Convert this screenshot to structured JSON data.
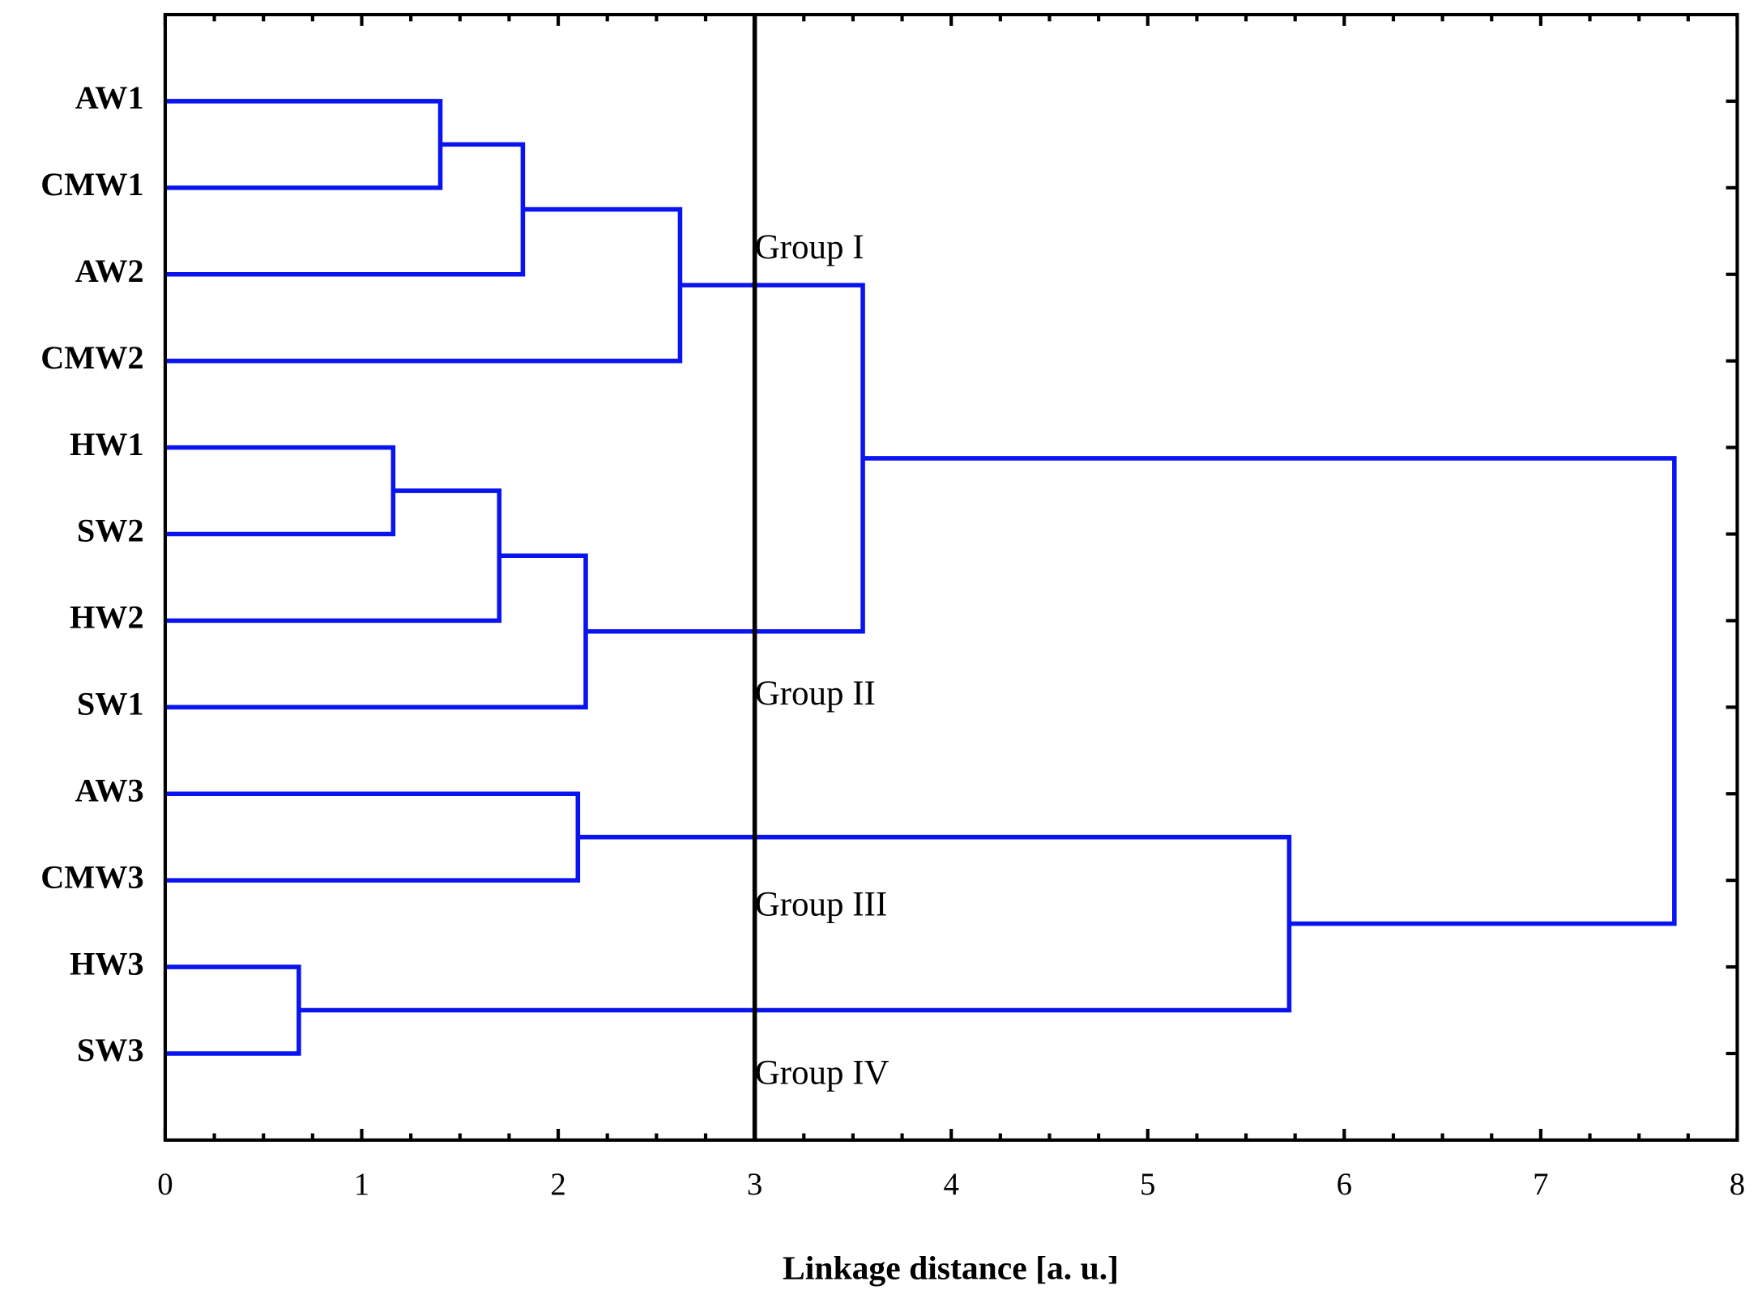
{
  "chart_data": {
    "type": "dendrogram",
    "xlabel": "Linkage distance [a. u.]",
    "xlim": [
      0,
      8
    ],
    "xticks": [
      0,
      1,
      2,
      3,
      4,
      5,
      6,
      7,
      8
    ],
    "color": "#0a14f0",
    "cutoff": 3,
    "annotations": [
      "Group I",
      "Group II",
      "Group III",
      "Group IV"
    ],
    "tree": {
      "height": 7.68,
      "children": [
        {
          "height": 3.55,
          "children": [
            {
              "height": 2.62,
              "children": [
                {
                  "height": 1.82,
                  "children": [
                    {
                      "height": 1.4,
                      "children": [
                        {
                          "label": "AW1"
                        },
                        {
                          "label": "CMW1"
                        }
                      ]
                    },
                    {
                      "label": "AW2"
                    }
                  ]
                },
                {
                  "label": "CMW2"
                }
              ]
            },
            {
              "height": 2.14,
              "children": [
                {
                  "height": 1.7,
                  "children": [
                    {
                      "height": 1.16,
                      "children": [
                        {
                          "label": "HW1"
                        },
                        {
                          "label": "SW2"
                        }
                      ]
                    },
                    {
                      "label": "HW2"
                    }
                  ]
                },
                {
                  "label": "SW1"
                }
              ]
            }
          ]
        },
        {
          "height": 5.72,
          "children": [
            {
              "height": 2.1,
              "children": [
                {
                  "label": "AW3"
                },
                {
                  "label": "CMW3"
                }
              ]
            },
            {
              "height": 0.68,
              "children": [
                {
                  "label": "HW3"
                },
                {
                  "label": "SW3"
                }
              ]
            }
          ]
        }
      ]
    }
  }
}
